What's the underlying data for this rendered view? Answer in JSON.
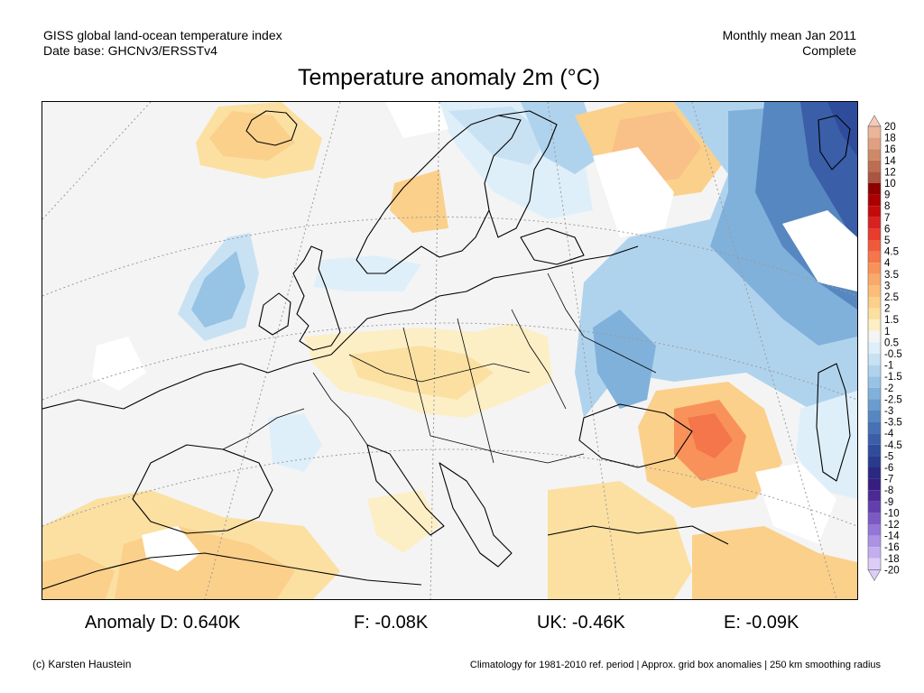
{
  "header": {
    "left_line1": "GISS global land-ocean temperature index",
    "left_line2": "Date base: GHCNv3/ERSSTv4",
    "right_line1": "Monthly mean Jan 2011",
    "right_line2": "Complete"
  },
  "title": "Temperature anomaly 2m (°C)",
  "colorbar": {
    "labels": [
      "20",
      "18",
      "16",
      "14",
      "12",
      "10",
      "9",
      "8",
      "7",
      "6",
      "5",
      "4.5",
      "4",
      "3.5",
      "3",
      "2.5",
      "2",
      "1.5",
      "1",
      "0.5",
      "-0.5",
      "-1",
      "-1.5",
      "-2",
      "-2.5",
      "-3",
      "-3.5",
      "-4",
      "-4.5",
      "-5",
      "-6",
      "-7",
      "-8",
      "-9",
      "-10",
      "-12",
      "-14",
      "-16",
      "-18",
      "-20"
    ],
    "colors": [
      "#f5cbb5",
      "#eab59a",
      "#dea081",
      "#cf8868",
      "#bd6e52",
      "#a9553f",
      "#8e0000",
      "#aa0000",
      "#c40a0a",
      "#d82222",
      "#e83c2c",
      "#f05a3a",
      "#f4764a",
      "#f8925a",
      "#f9a96a",
      "#fbbd78",
      "#fbd08a",
      "#fbe0a2",
      "#fcefc6",
      "#f4f4f4",
      "#dfeffa",
      "#c8e2f4",
      "#b0d3ed",
      "#97c3e4",
      "#80b1da",
      "#6a9ccd",
      "#5787c0",
      "#4771b4",
      "#3b5ea8",
      "#2f4c9c",
      "#2a3a8e",
      "#2a2880",
      "#351e80",
      "#4c2a95",
      "#633fad",
      "#7c5ac4",
      "#9476d6",
      "#ab92e3",
      "#c3afef",
      "#dccdf8"
    ]
  },
  "map_data": {
    "region": "Europe",
    "quantity": "Temperature anomaly 2m (°C)"
  },
  "stats": [
    "Anomaly D: 0.640K",
    "F: -0.08K",
    "UK: -0.46K",
    "E: -0.09K"
  ],
  "footer": {
    "left": "(c) Karsten Haustein",
    "right": "Climatology for 1981-2010 ref. period | Approx. grid box anomalies | 250 km smoothing radius"
  }
}
